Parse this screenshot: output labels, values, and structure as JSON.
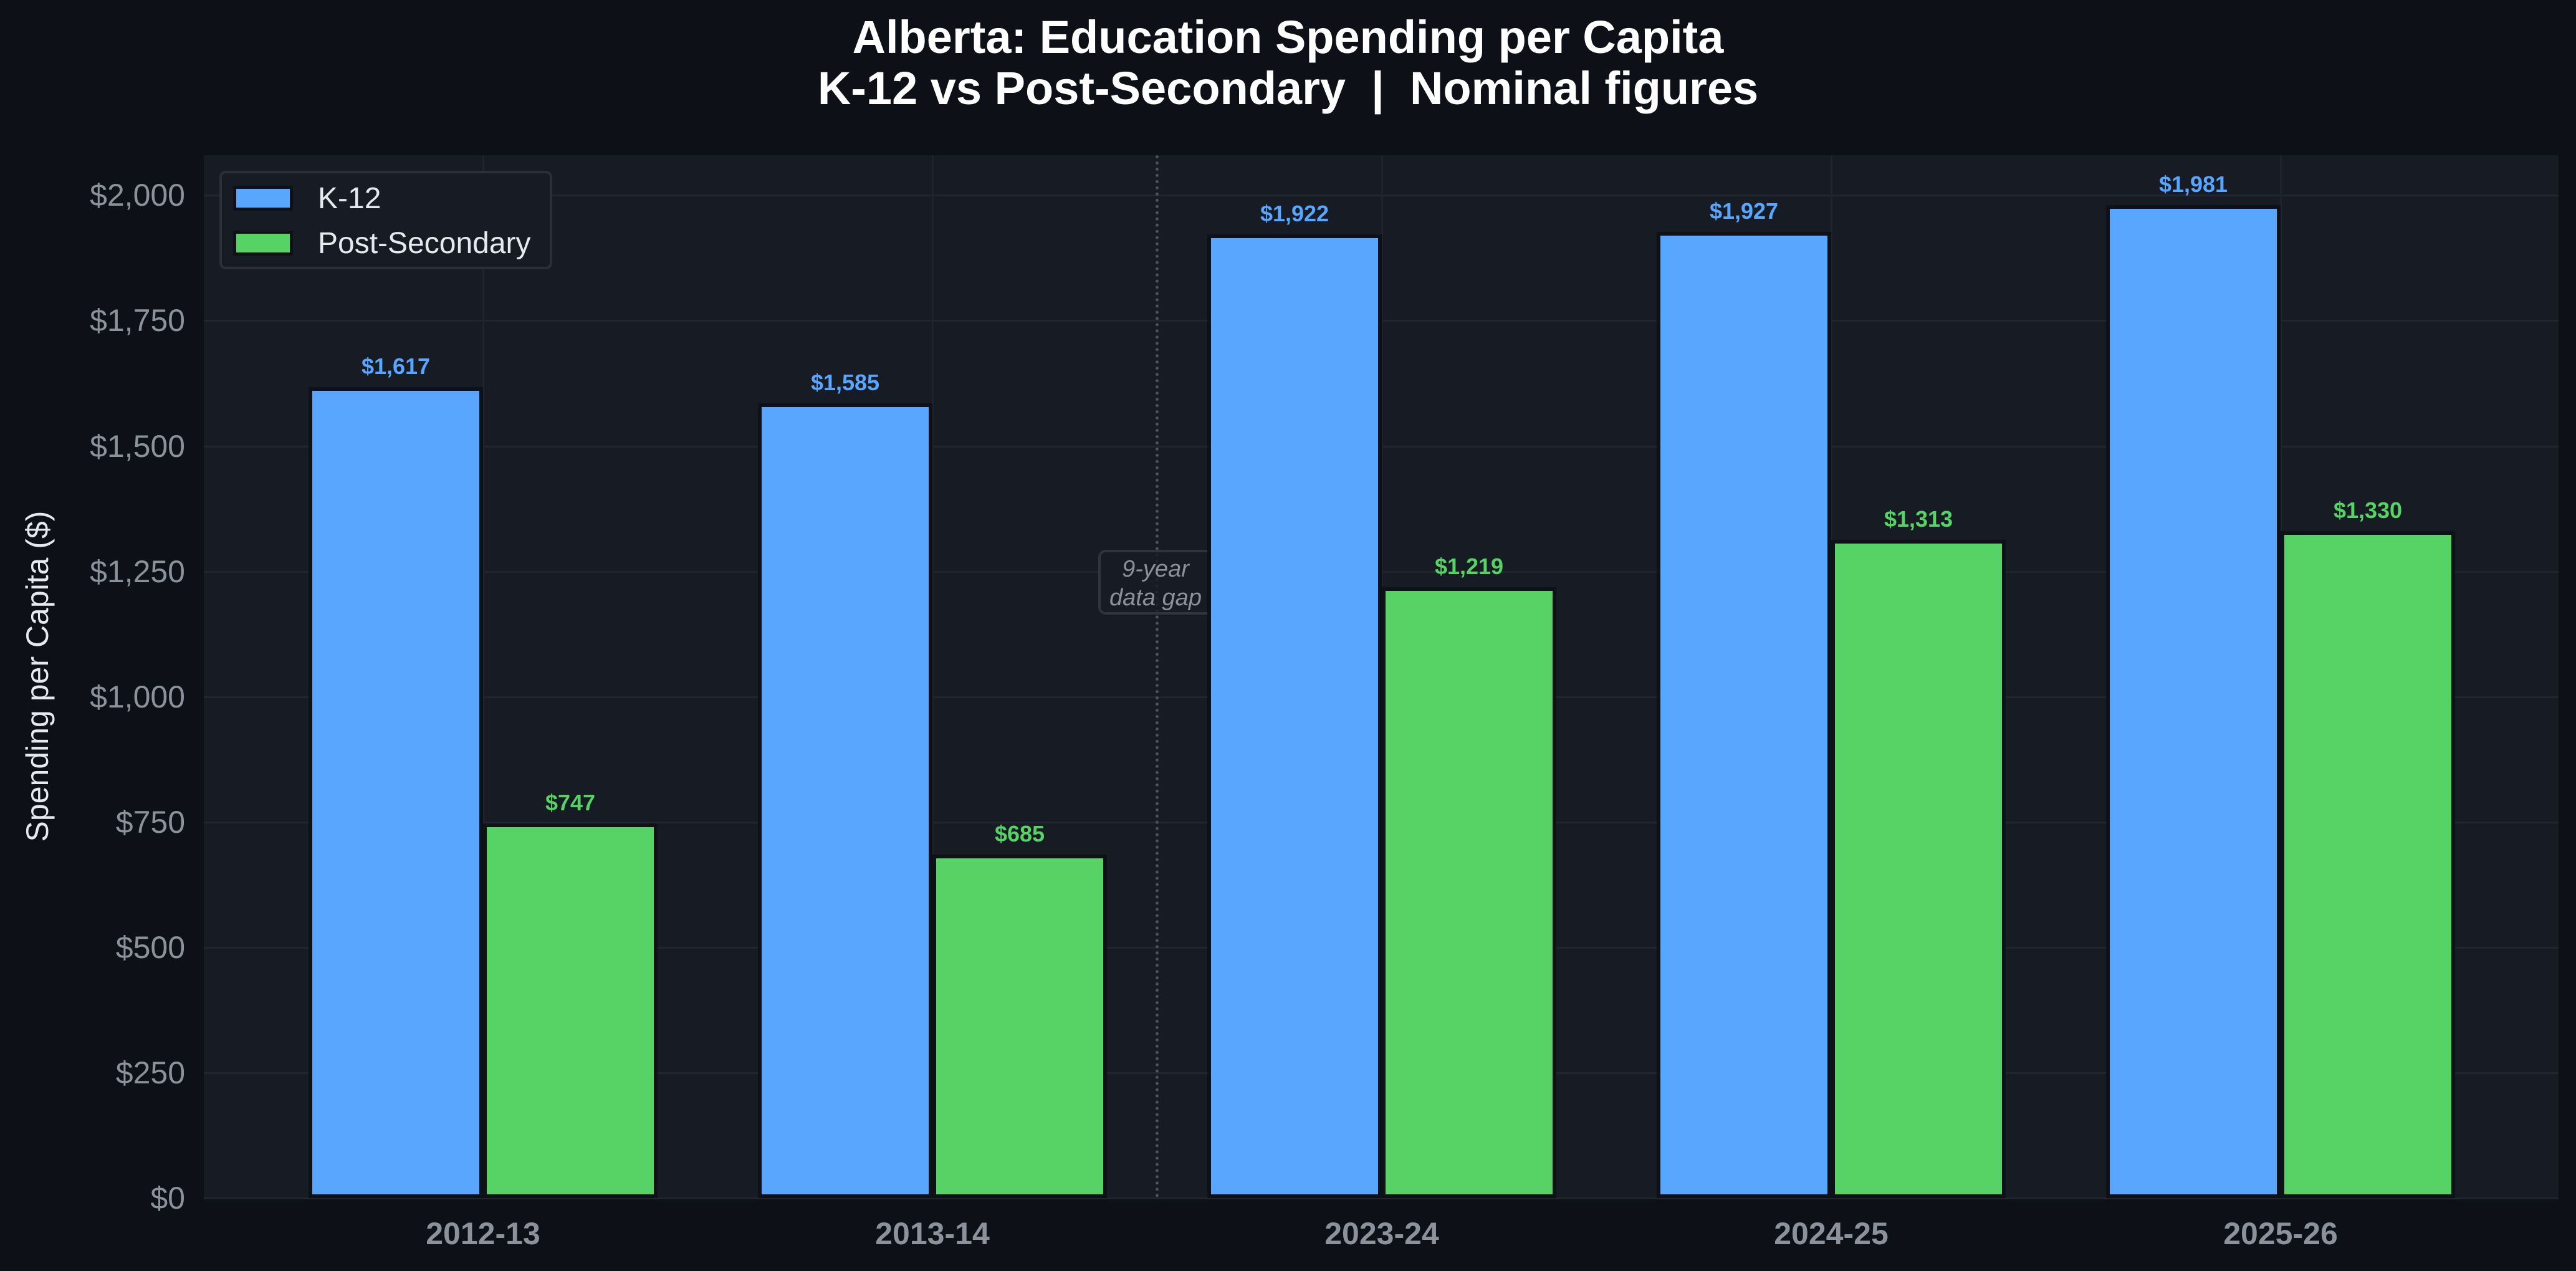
{
  "title": {
    "line1": "Alberta: Education Spending per Capita",
    "line2": "K-12 vs Post-Secondary  |  Nominal figures"
  },
  "axes": {
    "ylabel": "Spending per Capita ($)",
    "yticks": [
      "$0",
      "$250",
      "$500",
      "$750",
      "$1,000",
      "$1,250",
      "$1,500",
      "$1,750",
      "$2,000"
    ],
    "xticks": [
      "2012-13",
      "2013-14",
      "2023-24",
      "2024-25",
      "2025-26"
    ]
  },
  "legend": {
    "items": [
      {
        "label": "K-12",
        "color": "#58a6ff"
      },
      {
        "label": "Post-Secondary",
        "color": "#56d364"
      }
    ]
  },
  "annotation": {
    "line1": "9-year",
    "line2": "data gap"
  },
  "bar_labels": {
    "k12": [
      "$1,617",
      "$1,585",
      "$1,922",
      "$1,927",
      "$1,981"
    ],
    "ps": [
      "$747",
      "$685",
      "$1,219",
      "$1,313",
      "$1,330"
    ]
  },
  "colors": {
    "k12": "#58a6ff",
    "post_secondary": "#56d364",
    "background": "#0d1017",
    "plot_background": "#171b23"
  },
  "chart_data": {
    "type": "bar",
    "title": "Alberta: Education Spending per Capita\nK-12 vs Post-Secondary | Nominal figures",
    "xlabel": "",
    "ylabel": "Spending per Capita ($)",
    "categories": [
      "2012-13",
      "2013-14",
      "2023-24",
      "2024-25",
      "2025-26"
    ],
    "series": [
      {
        "name": "K-12",
        "color": "#58a6ff",
        "values": [
          1617,
          1585,
          1922,
          1927,
          1981
        ]
      },
      {
        "name": "Post-Secondary",
        "color": "#56d364",
        "values": [
          747,
          685,
          1219,
          1313,
          1330
        ]
      }
    ],
    "ylim": [
      0,
      2080
    ],
    "yticks": [
      0,
      250,
      500,
      750,
      1000,
      1250,
      1500,
      1750,
      2000
    ],
    "grid": true,
    "legend_position": "upper left",
    "annotations": [
      {
        "text": "9-year data gap",
        "x_between": [
          "2013-14",
          "2023-24"
        ],
        "y": 1200,
        "style": "dotted vertical divider"
      }
    ]
  }
}
